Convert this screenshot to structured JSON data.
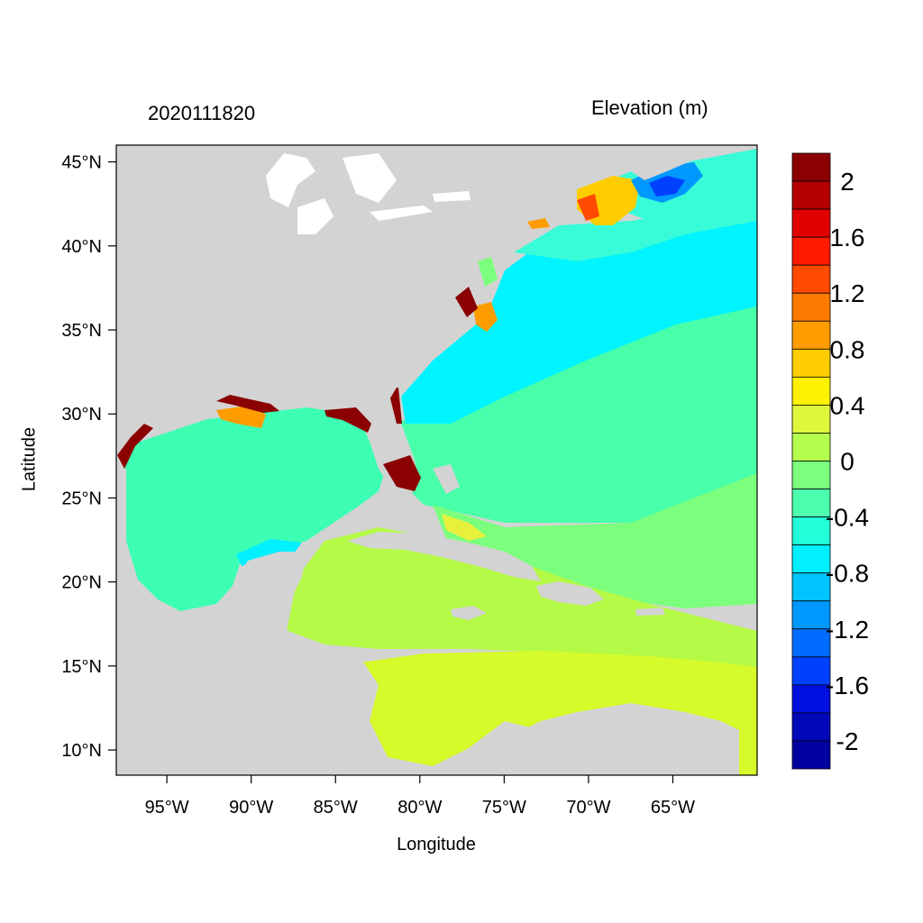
{
  "header": {
    "date_stamp": "2020111820",
    "variable": "Elevation (m)"
  },
  "axes": {
    "xlabel": "Longitude",
    "ylabel": "Latitude",
    "x_ticks": [
      "95°W",
      "90°W",
      "85°W",
      "80°W",
      "75°W",
      "70°W",
      "65°W"
    ],
    "x_tick_values": [
      -95,
      -90,
      -85,
      -80,
      -75,
      -70,
      -65
    ],
    "y_ticks": [
      "45°N",
      "40°N",
      "35°N",
      "30°N",
      "25°N",
      "20°N",
      "15°N",
      "10°N"
    ],
    "y_tick_values": [
      45,
      40,
      35,
      30,
      25,
      20,
      15,
      10
    ],
    "lon_range": [
      -98,
      -60
    ],
    "lat_range": [
      8.5,
      46
    ]
  },
  "colorbar": {
    "labels": [
      "2",
      "1.6",
      "1.2",
      "0.8",
      "0.4",
      "0",
      "-0.4",
      "-0.8",
      "-1.2",
      "-1.6",
      "-2"
    ],
    "colors": [
      "#8b0000",
      "#b30000",
      "#e00000",
      "#ff1a00",
      "#ff4a00",
      "#ff7a00",
      "#ff9c00",
      "#ffcc00",
      "#fff200",
      "#e0f83c",
      "#b4ff4e",
      "#7cff7c",
      "#4cffae",
      "#22ffd8",
      "#00f0ff",
      "#00c4ff",
      "#0098ff",
      "#006cff",
      "#0040ff",
      "#0010e0",
      "#0008b8",
      "#0000a0"
    ]
  },
  "colors": {
    "land": "#d3d3d3",
    "water_inland": "#ffffff",
    "gulf": "#3cffb4",
    "atlantic_north": "#38fcd8",
    "atlantic_shelf": "#00f4ff",
    "atlantic_mid": "#48ffaa",
    "atlantic_south": "#7cff7c",
    "caribbean_north": "#b4fa46",
    "caribbean_south": "#d6fb2a",
    "surge_high": "#8b0000",
    "surge_mid": "#ff9c00",
    "low_bay": "#0050ff"
  }
}
